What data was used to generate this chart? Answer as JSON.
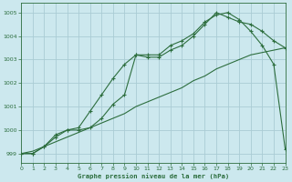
{
  "title": "Graphe pression niveau de la mer (hPa)",
  "background_color": "#cce8ee",
  "grid_color": "#aaccd4",
  "line_color": "#2d6e3e",
  "tick_color": "#2d6e3e",
  "xlim": [
    0,
    23
  ],
  "ylim": [
    998.6,
    1005.4
  ],
  "yticks": [
    999,
    1000,
    1001,
    1002,
    1003,
    1004,
    1005
  ],
  "xticks": [
    0,
    1,
    2,
    3,
    4,
    5,
    6,
    7,
    8,
    9,
    10,
    11,
    12,
    13,
    14,
    15,
    16,
    17,
    18,
    19,
    20,
    21,
    22,
    23
  ],
  "series": [
    {
      "x": [
        0,
        1,
        2,
        3,
        4,
        5,
        6,
        7,
        8,
        9,
        10,
        11,
        12,
        13,
        14,
        15,
        16,
        17,
        18,
        19,
        20,
        21,
        22,
        23
      ],
      "y": [
        999.0,
        999.0,
        999.3,
        999.7,
        1000.0,
        1000.0,
        1000.1,
        1000.5,
        1001.1,
        1001.5,
        1003.2,
        1003.1,
        1003.1,
        1003.4,
        1003.6,
        1004.0,
        1004.5,
        1005.0,
        1004.8,
        1004.6,
        1004.5,
        1004.2,
        1003.8,
        1003.5
      ]
    },
    {
      "x": [
        0,
        1,
        2,
        3,
        4,
        5,
        6,
        7,
        8,
        9,
        10,
        11,
        12,
        13,
        14,
        15,
        16,
        17,
        18,
        19,
        20,
        21,
        22,
        23
      ],
      "y": [
        999.0,
        999.0,
        999.3,
        999.8,
        1000.0,
        1000.1,
        1000.8,
        1001.5,
        1002.2,
        1002.8,
        1003.2,
        1003.2,
        1003.2,
        1003.6,
        1003.8,
        1004.1,
        1004.6,
        1004.9,
        1005.0,
        1004.7,
        1004.2,
        1003.6,
        1002.8,
        999.2
      ]
    },
    {
      "x": [
        0,
        1,
        2,
        3,
        4,
        5,
        6,
        7,
        8,
        9,
        10,
        11,
        12,
        13,
        14,
        15,
        16,
        17,
        18,
        19,
        20,
        21,
        22,
        23
      ],
      "y": [
        999.0,
        999.1,
        999.3,
        999.5,
        999.7,
        999.9,
        1000.1,
        1000.3,
        1000.5,
        1000.7,
        1001.0,
        1001.2,
        1001.4,
        1001.6,
        1001.8,
        1002.1,
        1002.3,
        1002.6,
        1002.8,
        1003.0,
        1003.2,
        1003.3,
        1003.4,
        1003.5
      ]
    }
  ]
}
